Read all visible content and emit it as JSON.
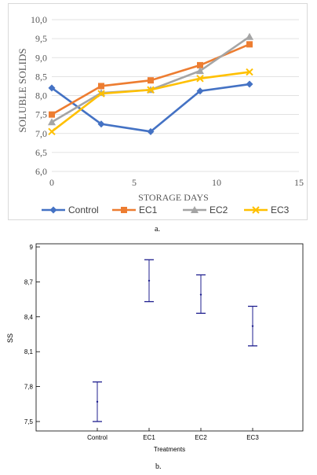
{
  "chart_data": [
    {
      "type": "line",
      "title": "",
      "xlabel": "STORAGE DAYS",
      "ylabel": "SOLUBLE SOLIDS",
      "xlim": [
        0,
        15
      ],
      "ylim": [
        6.0,
        10.0
      ],
      "xticks": [
        0,
        5,
        10,
        15
      ],
      "xtick_labels": [
        "0",
        "5",
        "10",
        "15"
      ],
      "yticks": [
        6.0,
        6.5,
        7.0,
        7.5,
        8.0,
        8.5,
        9.0,
        9.5,
        10.0
      ],
      "ytick_labels": [
        "6,0",
        "6,5",
        "7,0",
        "7,5",
        "8,0",
        "8,5",
        "9,0",
        "9,5",
        "10,0"
      ],
      "grid": true,
      "legend_position": "bottom",
      "series": [
        {
          "name": "Control",
          "color": "#4472c4",
          "marker": "diamond",
          "x": [
            0,
            3,
            6,
            9,
            12
          ],
          "y": [
            8.2,
            7.25,
            7.05,
            8.12,
            8.3
          ]
        },
        {
          "name": "EC1",
          "color": "#ed7d31",
          "marker": "square",
          "x": [
            0,
            3,
            6,
            9,
            12
          ],
          "y": [
            7.5,
            8.25,
            8.4,
            8.8,
            9.35
          ]
        },
        {
          "name": "EC2",
          "color": "#a5a5a5",
          "marker": "triangle",
          "x": [
            0,
            3,
            6,
            9,
            12
          ],
          "y": [
            7.3,
            8.07,
            8.15,
            8.65,
            9.55
          ]
        },
        {
          "name": "EC3",
          "color": "#ffc000",
          "marker": "x",
          "x": [
            0,
            3,
            6,
            9,
            12
          ],
          "y": [
            7.05,
            8.05,
            8.15,
            8.45,
            8.62
          ]
        }
      ]
    },
    {
      "type": "errorbar",
      "title": "",
      "xlabel": "Treatments",
      "ylabel": "SS",
      "ylim": [
        7.5,
        9.0
      ],
      "yticks": [
        7.5,
        7.8,
        8.1,
        8.4,
        8.7,
        9.0
      ],
      "ytick_labels": [
        "7,5",
        "7,8",
        "8,1",
        "8,4",
        "8,7",
        "9"
      ],
      "categories": [
        "Control",
        "EC1",
        "EC2",
        "EC3"
      ],
      "means": [
        7.67,
        8.71,
        8.59,
        8.32
      ],
      "lower": [
        7.5,
        8.53,
        8.43,
        8.15
      ],
      "upper": [
        7.84,
        8.89,
        8.76,
        8.49
      ],
      "color": "#1f1f8f"
    }
  ],
  "captions": {
    "a": "a.",
    "b": "b."
  }
}
